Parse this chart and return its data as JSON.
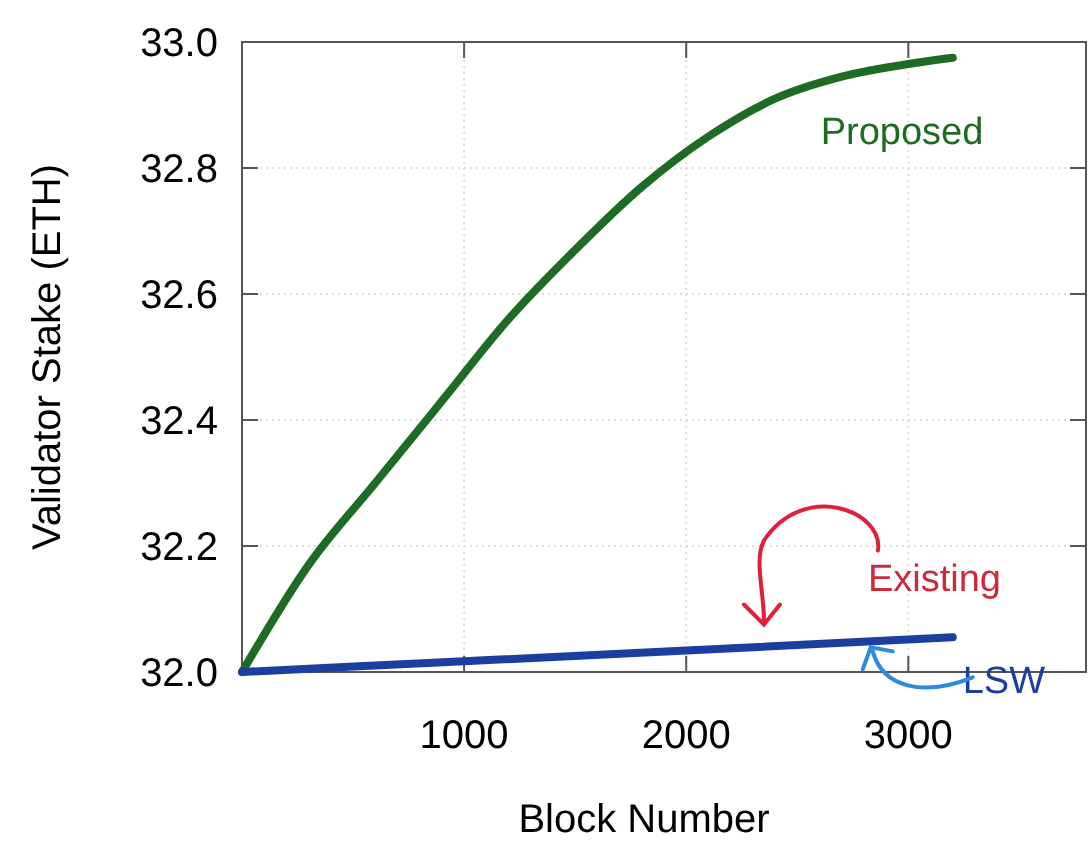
{
  "chart_data": {
    "type": "line",
    "xlabel": "Block Number",
    "ylabel": "Validator Stake (ETH)",
    "xlim": [
      0,
      3800
    ],
    "xticks": [
      1000,
      2000,
      3000
    ],
    "ylim": [
      32,
      33
    ],
    "yticks": [
      {
        "value": 32,
        "label": "32.0"
      },
      32.2,
      32.4,
      32.6,
      32.8,
      {
        "value": 33,
        "label": "33.0"
      }
    ],
    "grid": true,
    "line_style": "solid",
    "marker": "none",
    "series": [
      {
        "name": "Proposed",
        "color": "#1e6b23",
        "x": [
          0,
          300,
          600,
          900,
          1200,
          1500,
          1800,
          2100,
          2400,
          2700,
          3000,
          3200
        ],
        "values": [
          32.0,
          32.17,
          32.3,
          32.43,
          32.56,
          32.67,
          32.77,
          32.85,
          32.91,
          32.945,
          32.965,
          32.975
        ]
      },
      {
        "name": "LSW",
        "color": "#1a3fa0",
        "x": [
          0,
          1000,
          2000,
          3200
        ],
        "values": [
          32.0,
          32.017,
          32.034,
          32.055
        ]
      }
    ],
    "annotations": [
      {
        "text": "Existing",
        "x": 2350,
        "y": 32.05
      }
    ]
  }
}
